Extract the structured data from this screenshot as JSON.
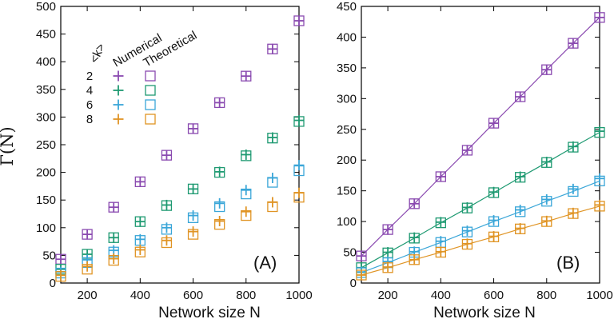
{
  "colors": {
    "purple": "#8a4ab0",
    "green": "#1f9a72",
    "cyan": "#3aa6d8",
    "orange": "#e09424"
  },
  "axes": {
    "ylabel": "Γ(N)",
    "xlabel_A": "Network size N",
    "xlabel_B": "Network size N",
    "xticks": [
      "200",
      "400",
      "600",
      "800",
      "1000"
    ],
    "yticks_A": [
      "0",
      "50",
      "100",
      "150",
      "200",
      "250",
      "300",
      "350",
      "400",
      "450",
      "500"
    ],
    "yticks_B": [
      "0",
      "50",
      "100",
      "150",
      "200",
      "250",
      "300",
      "350",
      "400",
      "450"
    ]
  },
  "panels": {
    "A_label": "(A)",
    "B_label": "(B)"
  },
  "legend": {
    "k_header": "<k>",
    "numerical_header": "Numerical",
    "theoretical_header": "Theoretical",
    "k_values": [
      "2",
      "4",
      "6",
      "8"
    ]
  },
  "chart_data": [
    {
      "panel": "A",
      "type": "scatter",
      "xlabel": "Network size N",
      "ylabel": "Γ(N)",
      "xlim": [
        100,
        1000
      ],
      "ylim": [
        0,
        500
      ],
      "x": [
        100,
        200,
        300,
        400,
        500,
        600,
        700,
        800,
        900,
        1000
      ],
      "series": [
        {
          "name": "2",
          "kind": "Numerical",
          "color": "#8a4ab0",
          "values": [
            43,
            88,
            137,
            183,
            231,
            279,
            326,
            374,
            423,
            474
          ]
        },
        {
          "name": "2",
          "kind": "Theoretical",
          "color": "#8a4ab0",
          "values": [
            43,
            88,
            137,
            183,
            231,
            279,
            326,
            374,
            423,
            474
          ]
        },
        {
          "name": "4",
          "kind": "Numerical",
          "color": "#1f9a72",
          "values": [
            25,
            52,
            82,
            111,
            141,
            170,
            201,
            232,
            263,
            294
          ]
        },
        {
          "name": "4",
          "kind": "Theoretical",
          "color": "#1f9a72",
          "values": [
            25,
            52,
            82,
            111,
            140,
            170,
            200,
            230,
            262,
            292
          ]
        },
        {
          "name": "6",
          "kind": "Numerical",
          "color": "#3aa6d8",
          "values": [
            20,
            42,
            59,
            79,
            100,
            122,
            144,
            168,
            190,
            213
          ]
        },
        {
          "name": "6",
          "kind": "Theoretical",
          "color": "#3aa6d8",
          "values": [
            18,
            37,
            56,
            77,
            97,
            118,
            138,
            161,
            182,
            203
          ]
        },
        {
          "name": "8",
          "kind": "Numerical",
          "color": "#e09424",
          "values": [
            14,
            30,
            44,
            60,
            77,
            93,
            112,
            129,
            146,
            163
          ]
        },
        {
          "name": "8",
          "kind": "Theoretical",
          "color": "#e09424",
          "values": [
            12,
            25,
            41,
            56,
            73,
            88,
            106,
            122,
            138,
            155
          ]
        }
      ]
    },
    {
      "panel": "B",
      "type": "line",
      "xlabel": "Network size N",
      "ylim": [
        0,
        450
      ],
      "xlim": [
        100,
        1000
      ],
      "x": [
        100,
        200,
        300,
        400,
        500,
        600,
        700,
        800,
        900,
        1000
      ],
      "series": [
        {
          "name": "2",
          "kind": "Numerical",
          "color": "#8a4ab0",
          "values": [
            44,
            87,
            129,
            173,
            216,
            260,
            303,
            347,
            390,
            432
          ]
        },
        {
          "name": "2",
          "kind": "Theoretical",
          "color": "#8a4ab0",
          "values": [
            44,
            87,
            129,
            173,
            216,
            260,
            303,
            347,
            390,
            432
          ]
        },
        {
          "name": "4",
          "kind": "Numerical",
          "color": "#1f9a72",
          "values": [
            25,
            50,
            74,
            99,
            123,
            148,
            173,
            197,
            222,
            247
          ]
        },
        {
          "name": "4",
          "kind": "Theoretical",
          "color": "#1f9a72",
          "values": [
            25,
            49,
            73,
            98,
            122,
            147,
            172,
            196,
            221,
            245
          ]
        },
        {
          "name": "6",
          "kind": "Numerical",
          "color": "#3aa6d8",
          "values": [
            18,
            35,
            51,
            68,
            85,
            102,
            119,
            136,
            153,
            170
          ]
        },
        {
          "name": "6",
          "kind": "Theoretical",
          "color": "#3aa6d8",
          "values": [
            17,
            33,
            50,
            66,
            83,
            100,
            116,
            133,
            149,
            166
          ]
        },
        {
          "name": "8",
          "kind": "Numerical",
          "color": "#e09424",
          "values": [
            13,
            26,
            38,
            51,
            64,
            76,
            89,
            101,
            114,
            127
          ]
        },
        {
          "name": "8",
          "kind": "Theoretical",
          "color": "#e09424",
          "values": [
            13,
            25,
            38,
            50,
            63,
            75,
            88,
            100,
            113,
            125
          ]
        }
      ]
    }
  ]
}
